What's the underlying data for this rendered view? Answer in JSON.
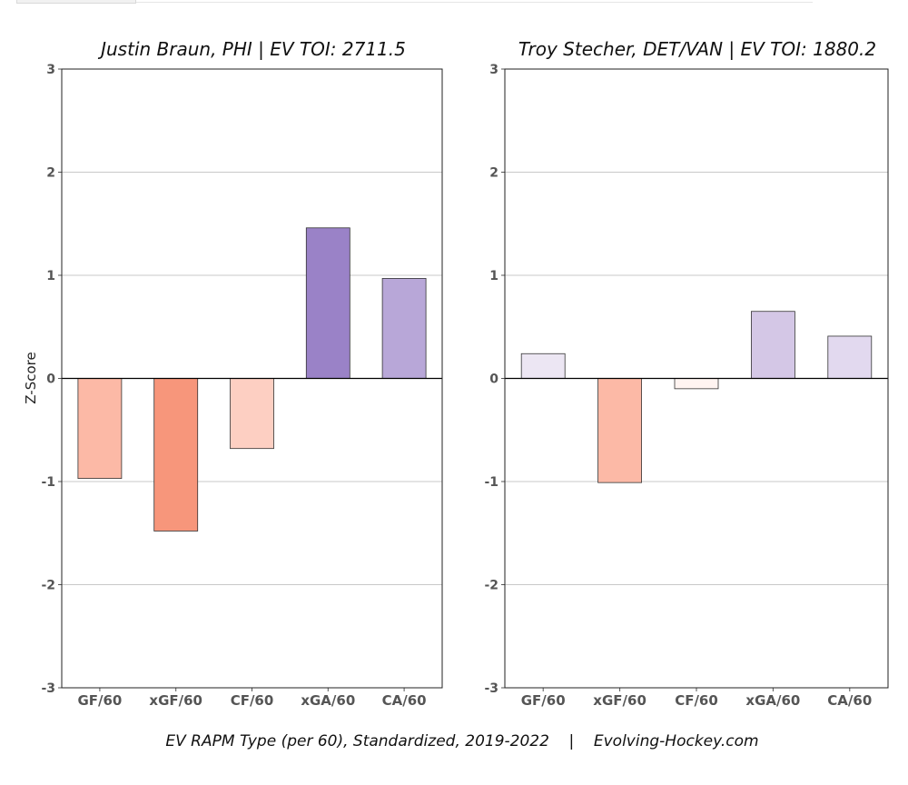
{
  "chart_data": [
    {
      "type": "bar",
      "title": "Justin Braun, PHI  |  EV TOI: 2711.5",
      "categories": [
        "GF/60",
        "xGF/60",
        "CF/60",
        "xGA/60",
        "CA/60"
      ],
      "values": [
        -0.97,
        -1.48,
        -0.68,
        1.46,
        0.97
      ],
      "colors": [
        "#fcb9a6",
        "#f7967b",
        "#fdcfc2",
        "#9a82c7",
        "#b8a7d8"
      ],
      "ylabel": "Z-Score",
      "ylim": [
        -3,
        3
      ],
      "yticks": [
        "3",
        "2",
        "1",
        "0",
        "-1",
        "-2",
        "-3"
      ],
      "grid": true
    },
    {
      "type": "bar",
      "title": "Troy Stecher, DET/VAN  |  EV TOI: 1880.2",
      "categories": [
        "GF/60",
        "xGF/60",
        "CF/60",
        "xGA/60",
        "CA/60"
      ],
      "values": [
        0.24,
        -1.01,
        -0.1,
        0.65,
        0.41
      ],
      "colors": [
        "#ece6f3",
        "#fcb9a6",
        "#fff4f1",
        "#d4c7e6",
        "#e2d9ef"
      ],
      "ylabel": "",
      "ylim": [
        -3,
        3
      ],
      "yticks": [
        "3",
        "2",
        "1",
        "0",
        "-1",
        "-2",
        "-3"
      ],
      "grid": true
    }
  ],
  "footer": "EV RAPM Type (per 60), Standardized, 2019-2022    |    Evolving-Hockey.com"
}
